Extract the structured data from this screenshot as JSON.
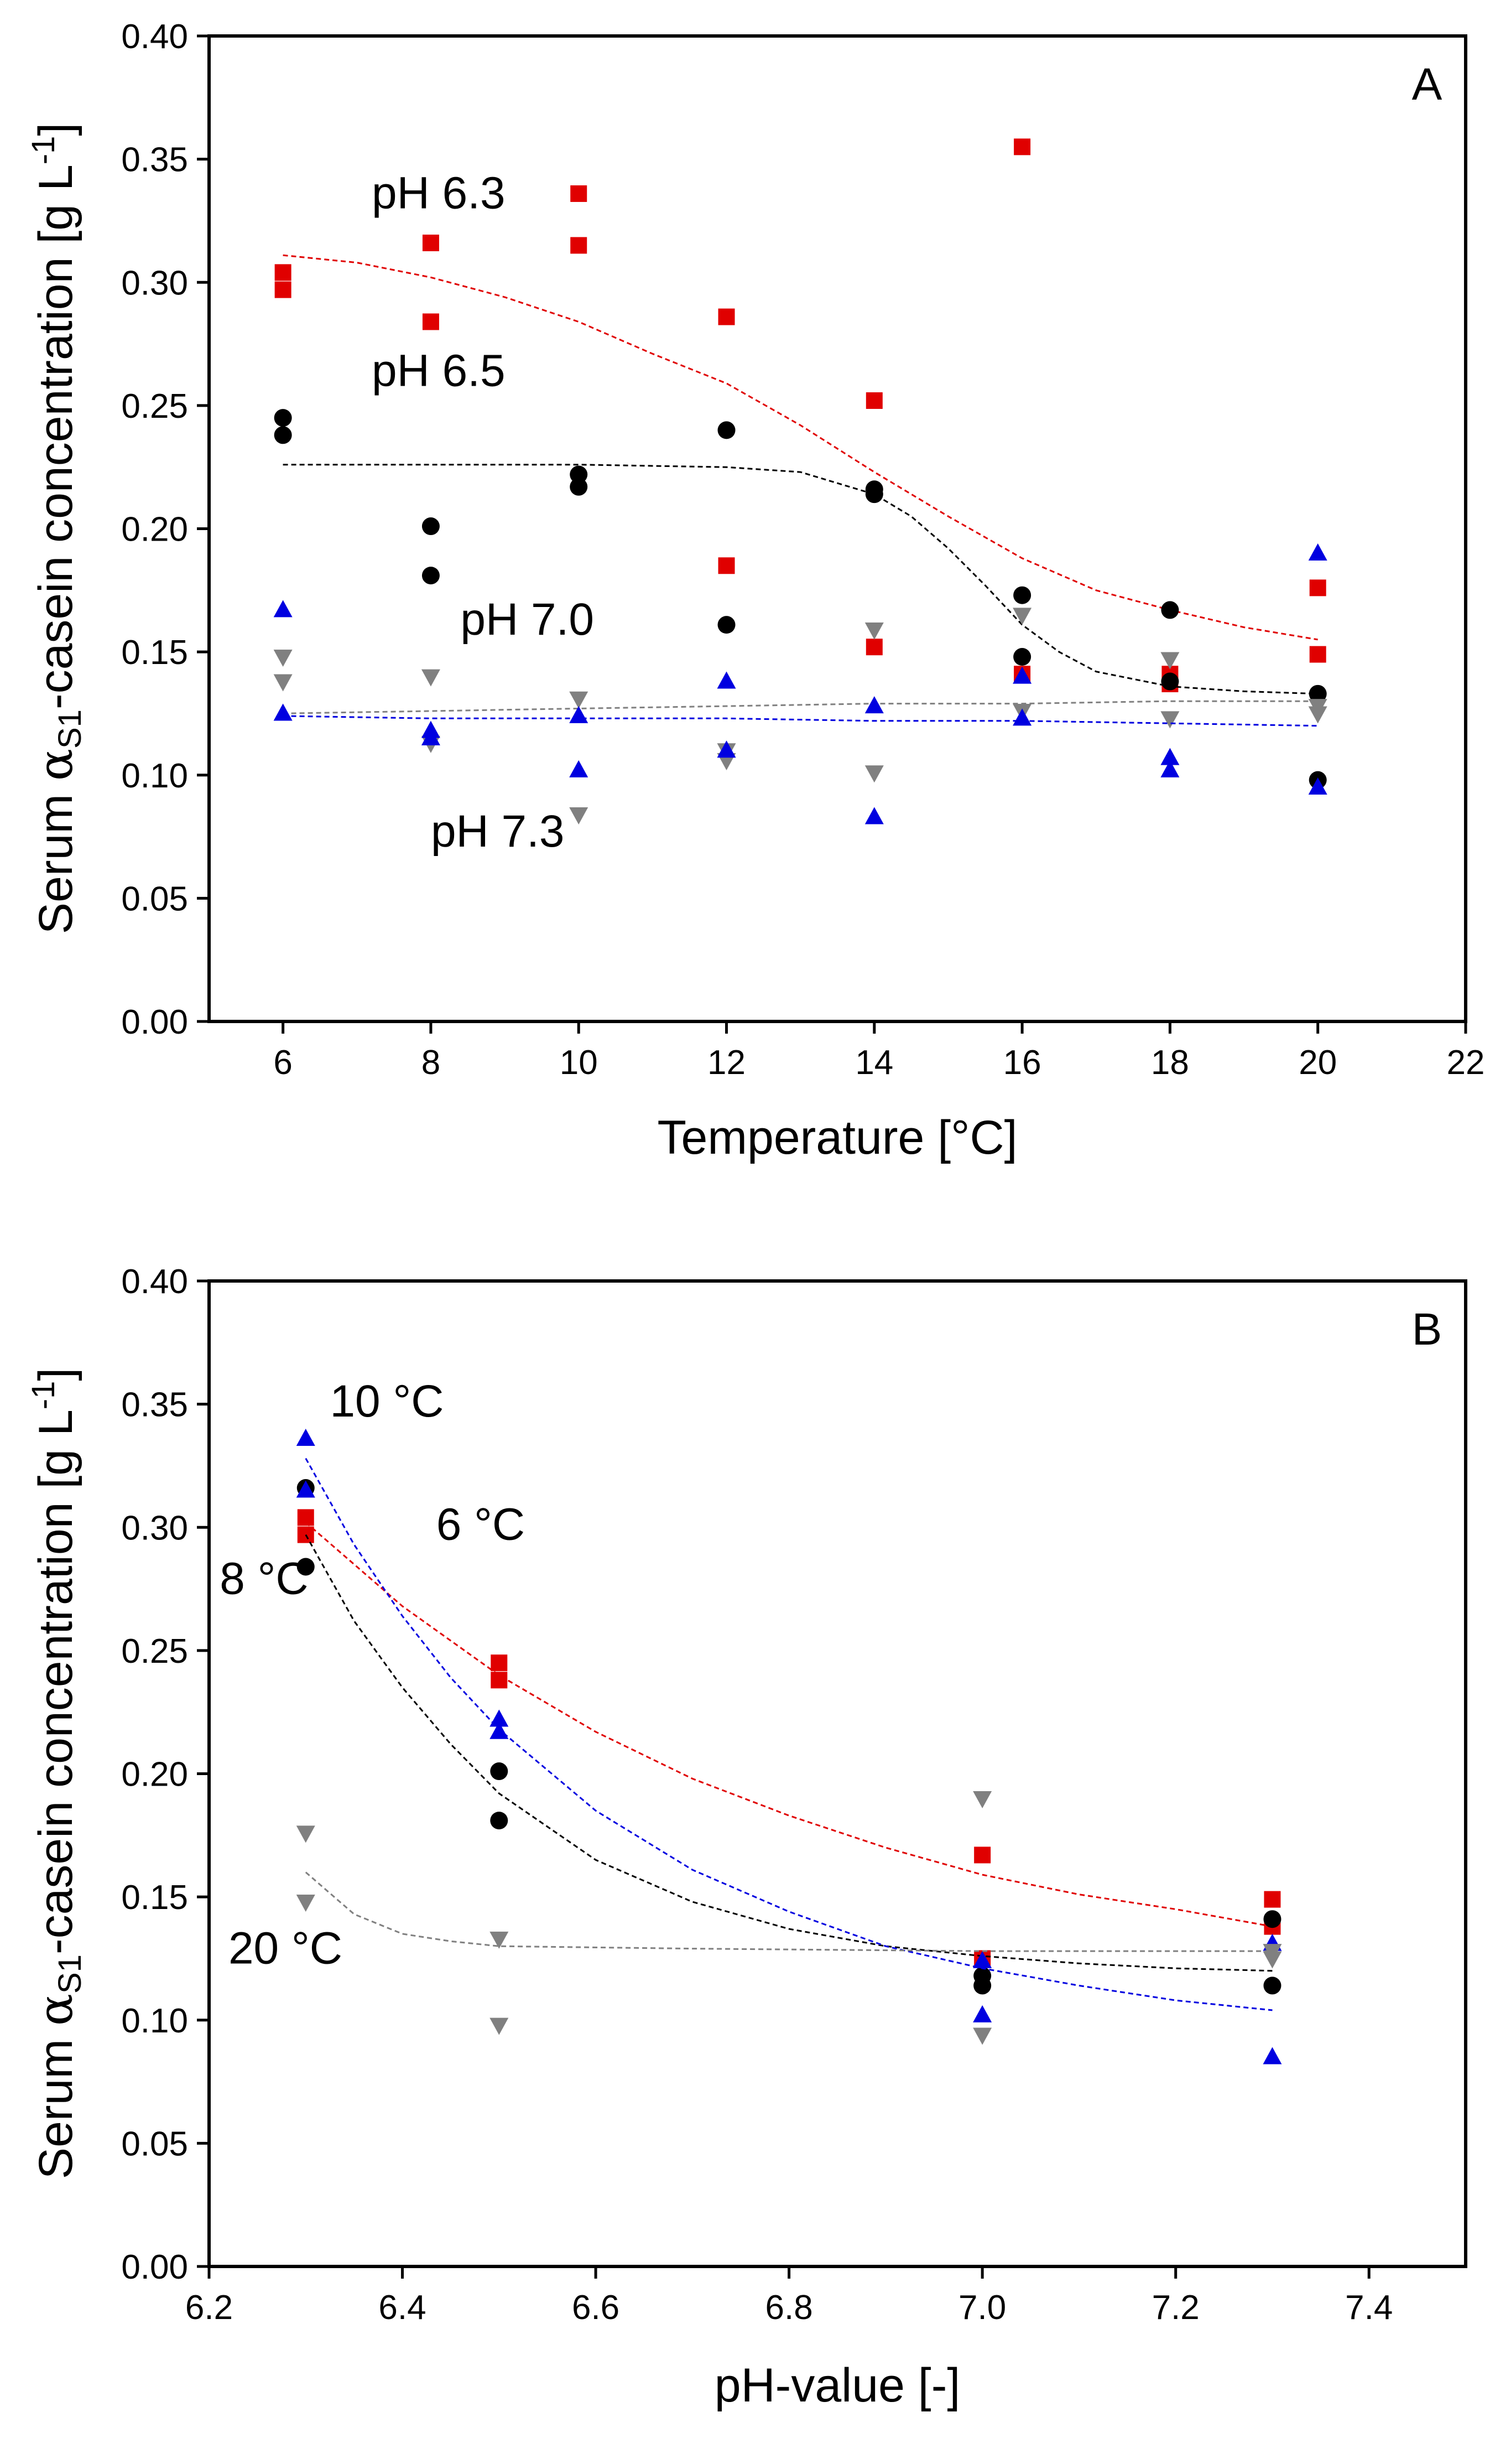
{
  "chart_data": [
    {
      "type": "scatter",
      "panel_label": "A",
      "xlabel": "Temperature [°C]",
      "ylabel": {
        "pre": "Serum ",
        "alpha": "α",
        "sub": "S1",
        "post": "-casein concentration [g L",
        "sup": "-1",
        "end": "]"
      },
      "xlim": [
        5,
        22
      ],
      "ylim": [
        0,
        0.4
      ],
      "xticks": [
        6,
        8,
        10,
        12,
        14,
        16,
        18,
        20,
        22
      ],
      "yticks": [
        0.0,
        0.05,
        0.1,
        0.15,
        0.2,
        0.25,
        0.3,
        0.35,
        0.4
      ],
      "series": [
        {
          "name": "pH 6.3",
          "marker": "square",
          "color": "#e00000",
          "points": [
            [
              6,
              0.304
            ],
            [
              6,
              0.297
            ],
            [
              8,
              0.316
            ],
            [
              8,
              0.284
            ],
            [
              10,
              0.336
            ],
            [
              10,
              0.315
            ],
            [
              12,
              0.286
            ],
            [
              12,
              0.185
            ],
            [
              14,
              0.252
            ],
            [
              14,
              0.152
            ],
            [
              16,
              0.355
            ],
            [
              16,
              0.141
            ],
            [
              18,
              0.141
            ],
            [
              18,
              0.137
            ],
            [
              20,
              0.176
            ],
            [
              20,
              0.149
            ]
          ],
          "fit": [
            [
              6,
              0.311
            ],
            [
              7,
              0.308
            ],
            [
              8,
              0.302
            ],
            [
              9,
              0.294
            ],
            [
              10,
              0.284
            ],
            [
              11,
              0.271
            ],
            [
              12,
              0.259
            ],
            [
              13,
              0.242
            ],
            [
              14,
              0.223
            ],
            [
              15,
              0.205
            ],
            [
              16,
              0.188
            ],
            [
              17,
              0.175
            ],
            [
              18,
              0.167
            ],
            [
              19,
              0.16
            ],
            [
              20,
              0.155
            ]
          ]
        },
        {
          "name": "pH 6.5",
          "marker": "circle",
          "color": "#000000",
          "points": [
            [
              6,
              0.245
            ],
            [
              6,
              0.238
            ],
            [
              8,
              0.201
            ],
            [
              8,
              0.181
            ],
            [
              10,
              0.222
            ],
            [
              10,
              0.217
            ],
            [
              12,
              0.24
            ],
            [
              12,
              0.161
            ],
            [
              14,
              0.216
            ],
            [
              14,
              0.214
            ],
            [
              16,
              0.173
            ],
            [
              16,
              0.148
            ],
            [
              18,
              0.167
            ],
            [
              18,
              0.138
            ],
            [
              20,
              0.133
            ],
            [
              20,
              0.098
            ]
          ],
          "fit": [
            [
              6,
              0.226
            ],
            [
              8,
              0.226
            ],
            [
              10,
              0.226
            ],
            [
              12,
              0.225
            ],
            [
              13,
              0.223
            ],
            [
              14,
              0.214
            ],
            [
              14.5,
              0.205
            ],
            [
              15,
              0.192
            ],
            [
              15.5,
              0.177
            ],
            [
              16,
              0.161
            ],
            [
              16.5,
              0.15
            ],
            [
              17,
              0.142
            ],
            [
              18,
              0.136
            ],
            [
              19,
              0.134
            ],
            [
              20,
              0.133
            ]
          ]
        },
        {
          "name": "pH 7.0",
          "marker": "triangle-down",
          "color": "#808080",
          "points": [
            [
              6,
              0.148
            ],
            [
              6,
              0.138
            ],
            [
              8,
              0.14
            ],
            [
              8,
              0.113
            ],
            [
              10,
              0.131
            ],
            [
              10,
              0.084
            ],
            [
              12,
              0.11
            ],
            [
              12,
              0.106
            ],
            [
              14,
              0.159
            ],
            [
              14,
              0.101
            ],
            [
              16,
              0.165
            ],
            [
              16,
              0.126
            ],
            [
              18,
              0.147
            ],
            [
              18,
              0.123
            ],
            [
              20,
              0.128
            ],
            [
              20,
              0.125
            ]
          ],
          "fit": [
            [
              6,
              0.125
            ],
            [
              8,
              0.126
            ],
            [
              10,
              0.127
            ],
            [
              12,
              0.128
            ],
            [
              14,
              0.129
            ],
            [
              16,
              0.129
            ],
            [
              18,
              0.13
            ],
            [
              20,
              0.13
            ]
          ]
        },
        {
          "name": "pH 7.3",
          "marker": "triangle-up",
          "color": "#0000e0",
          "points": [
            [
              6,
              0.167
            ],
            [
              6,
              0.125
            ],
            [
              8,
              0.118
            ],
            [
              8,
              0.115
            ],
            [
              10,
              0.124
            ],
            [
              10,
              0.102
            ],
            [
              12,
              0.138
            ],
            [
              12,
              0.11
            ],
            [
              14,
              0.128
            ],
            [
              14,
              0.083
            ],
            [
              16,
              0.14
            ],
            [
              16,
              0.123
            ],
            [
              18,
              0.107
            ],
            [
              18,
              0.102
            ],
            [
              20,
              0.19
            ],
            [
              20,
              0.095
            ]
          ],
          "fit": [
            [
              6,
              0.124
            ],
            [
              8,
              0.123
            ],
            [
              10,
              0.123
            ],
            [
              12,
              0.123
            ],
            [
              14,
              0.122
            ],
            [
              16,
              0.122
            ],
            [
              18,
              0.121
            ],
            [
              20,
              0.12
            ]
          ]
        }
      ],
      "annotations": [
        {
          "text": "pH 6.3",
          "x": 7.2,
          "y": 0.33
        },
        {
          "text": "pH 6.5",
          "x": 7.2,
          "y": 0.258
        },
        {
          "text": "pH 7.0",
          "x": 8.4,
          "y": 0.157
        },
        {
          "text": "pH 7.3",
          "x": 8.0,
          "y": 0.071
        }
      ]
    },
    {
      "type": "scatter",
      "panel_label": "B",
      "xlabel": "pH-value [-]",
      "ylabel": {
        "pre": "Serum ",
        "alpha": "α",
        "sub": "S1",
        "post": "-casein concentration [g L",
        "sup": "-1",
        "end": "]"
      },
      "xlim": [
        6.2,
        7.5
      ],
      "ylim": [
        0,
        0.4
      ],
      "xticks": [
        6.2,
        6.4,
        6.6,
        6.8,
        7.0,
        7.2,
        7.4
      ],
      "xtick_labels": [
        "6.2",
        "6.4",
        "6.6",
        "6.8",
        "7.0",
        "7.2",
        "7.4"
      ],
      "yticks": [
        0.0,
        0.05,
        0.1,
        0.15,
        0.2,
        0.25,
        0.3,
        0.35,
        0.4
      ],
      "series": [
        {
          "name": "6 °C",
          "marker": "square",
          "color": "#e00000",
          "points": [
            [
              6.3,
              0.304
            ],
            [
              6.3,
              0.297
            ],
            [
              6.5,
              0.245
            ],
            [
              6.5,
              0.238
            ],
            [
              7.0,
              0.167
            ],
            [
              7.0,
              0.125
            ],
            [
              7.3,
              0.149
            ],
            [
              7.3,
              0.138
            ]
          ],
          "fit": [
            [
              6.3,
              0.302
            ],
            [
              6.4,
              0.268
            ],
            [
              6.5,
              0.24
            ],
            [
              6.6,
              0.217
            ],
            [
              6.7,
              0.198
            ],
            [
              6.8,
              0.183
            ],
            [
              6.9,
              0.17
            ],
            [
              7.0,
              0.159
            ],
            [
              7.1,
              0.151
            ],
            [
              7.2,
              0.145
            ],
            [
              7.3,
              0.138
            ]
          ]
        },
        {
          "name": "8 °C",
          "marker": "circle",
          "color": "#000000",
          "points": [
            [
              6.3,
              0.316
            ],
            [
              6.3,
              0.284
            ],
            [
              6.5,
              0.201
            ],
            [
              6.5,
              0.181
            ],
            [
              7.0,
              0.118
            ],
            [
              7.0,
              0.114
            ],
            [
              7.3,
              0.141
            ],
            [
              7.3,
              0.114
            ]
          ],
          "fit": [
            [
              6.3,
              0.297
            ],
            [
              6.35,
              0.262
            ],
            [
              6.4,
              0.235
            ],
            [
              6.45,
              0.212
            ],
            [
              6.5,
              0.192
            ],
            [
              6.6,
              0.165
            ],
            [
              6.7,
              0.148
            ],
            [
              6.8,
              0.137
            ],
            [
              6.9,
              0.13
            ],
            [
              7.0,
              0.126
            ],
            [
              7.1,
              0.123
            ],
            [
              7.2,
              0.121
            ],
            [
              7.3,
              0.12
            ]
          ]
        },
        {
          "name": "10 °C",
          "marker": "triangle-up",
          "color": "#0000e0",
          "points": [
            [
              6.3,
              0.336
            ],
            [
              6.3,
              0.315
            ],
            [
              6.5,
              0.222
            ],
            [
              6.5,
              0.217
            ],
            [
              7.0,
              0.124
            ],
            [
              7.0,
              0.102
            ],
            [
              7.3,
              0.131
            ],
            [
              7.3,
              0.085
            ]
          ],
          "fit": [
            [
              6.3,
              0.328
            ],
            [
              6.35,
              0.293
            ],
            [
              6.4,
              0.264
            ],
            [
              6.45,
              0.239
            ],
            [
              6.5,
              0.218
            ],
            [
              6.6,
              0.185
            ],
            [
              6.7,
              0.161
            ],
            [
              6.8,
              0.144
            ],
            [
              6.9,
              0.13
            ],
            [
              7.0,
              0.121
            ],
            [
              7.1,
              0.114
            ],
            [
              7.2,
              0.108
            ],
            [
              7.3,
              0.104
            ]
          ]
        },
        {
          "name": "20 °C",
          "marker": "triangle-down",
          "color": "#808080",
          "points": [
            [
              6.3,
              0.176
            ],
            [
              6.3,
              0.148
            ],
            [
              6.5,
              0.133
            ],
            [
              6.5,
              0.098
            ],
            [
              7.0,
              0.19
            ],
            [
              7.0,
              0.094
            ],
            [
              7.3,
              0.128
            ],
            [
              7.3,
              0.125
            ]
          ],
          "fit": [
            [
              6.3,
              0.16
            ],
            [
              6.35,
              0.143
            ],
            [
              6.4,
              0.135
            ],
            [
              6.45,
              0.132
            ],
            [
              6.5,
              0.13
            ],
            [
              6.7,
              0.129
            ],
            [
              7.0,
              0.128
            ],
            [
              7.3,
              0.128
            ]
          ]
        }
      ],
      "annotations": [
        {
          "text": "10 °C",
          "x": 6.325,
          "y": 0.345
        },
        {
          "text": "6 °C",
          "x": 6.435,
          "y": 0.295
        },
        {
          "text": "8 °C",
          "x": 6.211,
          "y": 0.273
        },
        {
          "text": "20 °C",
          "x": 6.22,
          "y": 0.123
        }
      ]
    }
  ]
}
